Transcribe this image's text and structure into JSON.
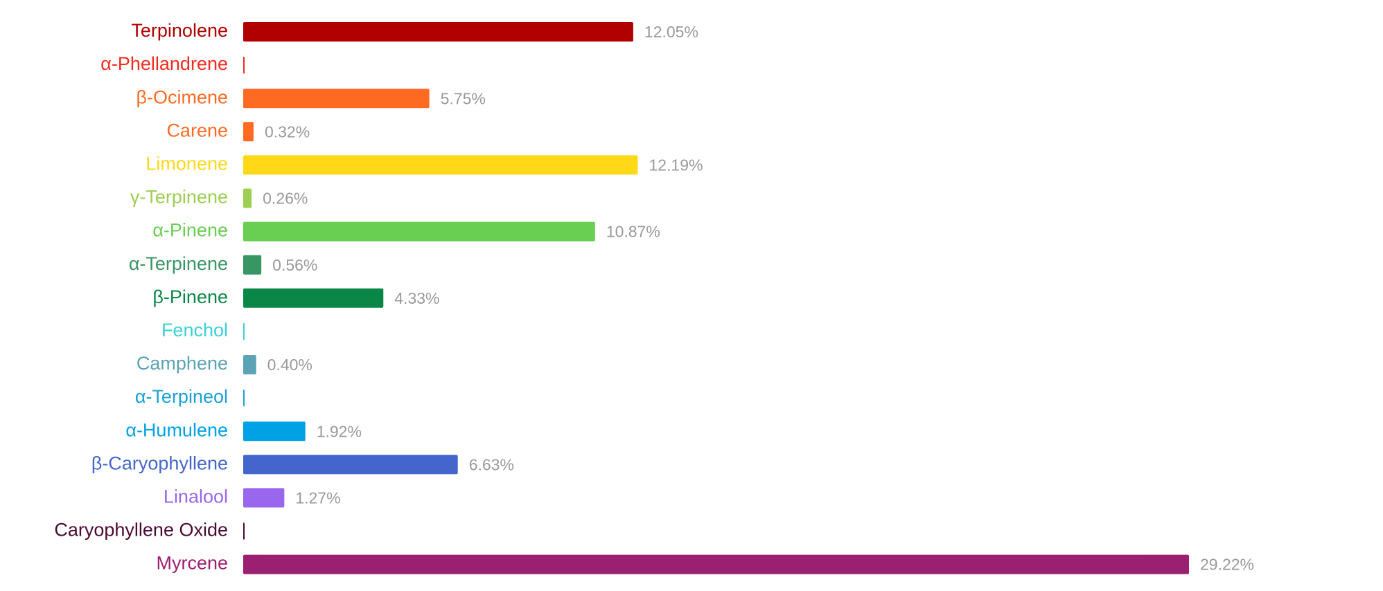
{
  "chart_data": {
    "type": "bar",
    "orientation": "horizontal",
    "categories": [
      "Terpinolene",
      "α-Phellandrene",
      "β-Ocimene",
      "Carene",
      "Limonene",
      "γ-Terpinene",
      "α-Pinene",
      "α-Terpinene",
      "β-Pinene",
      "Fenchol",
      "Camphene",
      "α-Terpineol",
      "α-Humulene",
      "β-Caryophyllene",
      "Linalool",
      "Caryophyllene Oxide",
      "Myrcene"
    ],
    "values": [
      12.05,
      0,
      5.75,
      0.32,
      12.19,
      0.26,
      10.87,
      0.56,
      4.33,
      0,
      0.4,
      0,
      1.92,
      6.63,
      1.27,
      0,
      29.22
    ],
    "value_labels": [
      "12.05%",
      null,
      "5.75%",
      "0.32%",
      "12.19%",
      "0.26%",
      "10.87%",
      "0.56%",
      "4.33%",
      null,
      "0.40%",
      null,
      "1.92%",
      "6.63%",
      "1.27%",
      null,
      "29.22%"
    ],
    "colors": [
      "#b00000",
      "#f52a1e",
      "#ff6a23",
      "#ff6a23",
      "#ffd817",
      "#9ccf52",
      "#68cf52",
      "#389663",
      "#0a8747",
      "#3ad0d8",
      "#5ba3b5",
      "#1aa1d6",
      "#00a1e5",
      "#4466cc",
      "#9966ee",
      "#4a0a33",
      "#9c2072"
    ]
  }
}
